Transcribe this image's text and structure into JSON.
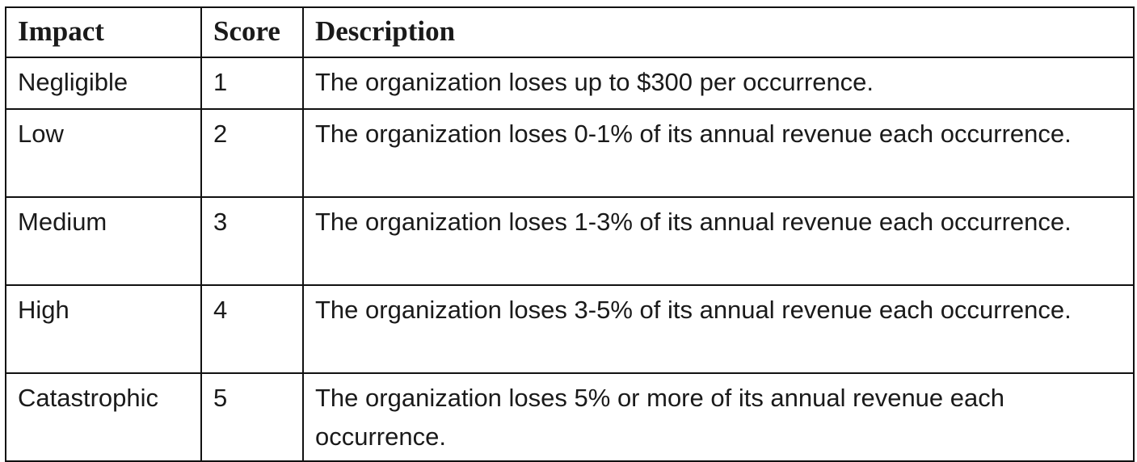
{
  "table": {
    "headers": {
      "impact": "Impact",
      "score": "Score",
      "description": "Description"
    },
    "rows": [
      {
        "impact": "Negligible",
        "score": "1",
        "description": "The organization loses up to $300 per occurrence."
      },
      {
        "impact": "Low",
        "score": "2",
        "description": "The organization loses 0-1% of its annual revenue each occurrence."
      },
      {
        "impact": "Medium",
        "score": "3",
        "description": "The organization loses 1-3% of its annual revenue each occurrence."
      },
      {
        "impact": "High",
        "score": "4",
        "description": "The organization loses 3-5% of its annual revenue each occurrence."
      },
      {
        "impact": "Catastrophic",
        "score": "5",
        "description": "The organization loses 5% or more of its annual revenue each occurrence."
      }
    ]
  }
}
